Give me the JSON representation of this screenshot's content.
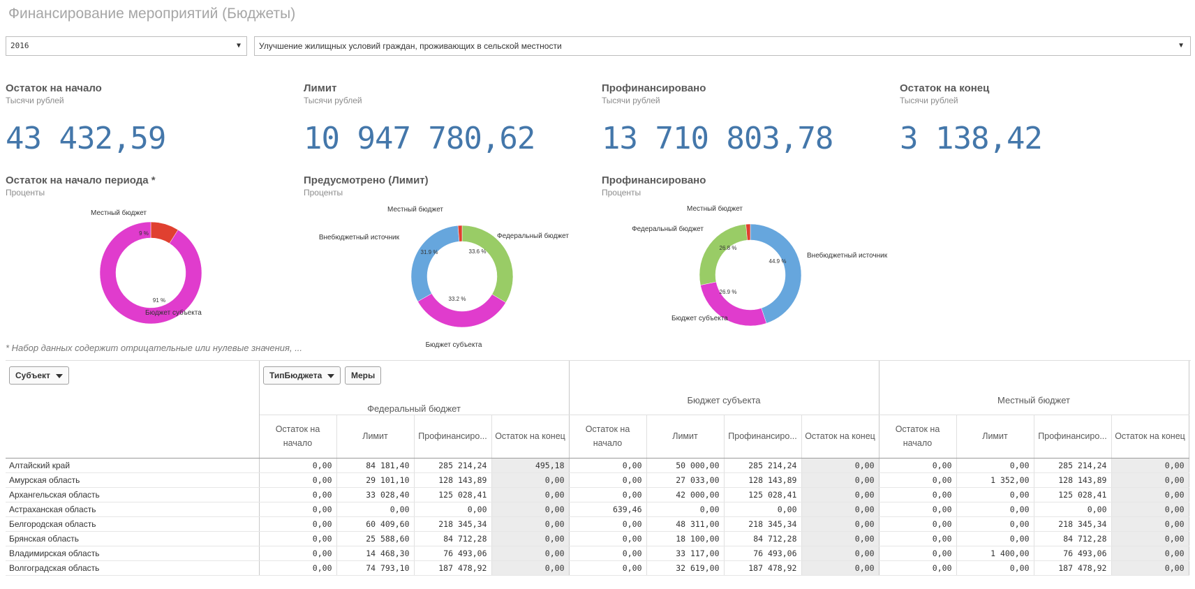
{
  "page": {
    "title": "Финансирование мероприятий (Бюджеты)"
  },
  "filters": {
    "year": "2016",
    "program": "Улучшение жилищных условий граждан, проживающих в сельской местности"
  },
  "kpis": [
    {
      "title": "Остаток на начало",
      "unit": "Тысячи рублей",
      "value": "43 432,59"
    },
    {
      "title": "Лимит",
      "unit": "Тысячи рублей",
      "value": "10 947 780,62"
    },
    {
      "title": "Профинансировано",
      "unit": "Тысячи рублей",
      "value": "13 710 803,78"
    },
    {
      "title": "Остаток на конец",
      "unit": "Тысячи рублей",
      "value": "3 138,42"
    }
  ],
  "chart_data": [
    {
      "type": "pie",
      "title": "Остаток на начало периода *",
      "subtitle": "Проценты",
      "slices": [
        {
          "label": "Местный бюджет",
          "pct_label": "9 %",
          "value": 9,
          "color": "#e04030"
        },
        {
          "label": "Бюджет субъекта",
          "pct_label": "91 %",
          "value": 91,
          "color": "#e03ccd"
        }
      ]
    },
    {
      "type": "pie",
      "title": "Предусмотрено (Лимит)",
      "subtitle": "Проценты",
      "slices": [
        {
          "label": "Федеральный бюджет",
          "pct_label": "33.6 %",
          "value": 33.6,
          "color": "#99cc66"
        },
        {
          "label": "Бюджет субъекта",
          "pct_label": "33.2 %",
          "value": 33.2,
          "color": "#e03ccd"
        },
        {
          "label": "Внебюджетный источник",
          "pct_label": "31.9 %",
          "value": 31.9,
          "color": "#66a6dd"
        },
        {
          "label": "Местный бюджет",
          "pct_label": "",
          "value": 1.3,
          "color": "#e04030"
        }
      ]
    },
    {
      "type": "pie",
      "title": "Профинансировано",
      "subtitle": "Проценты",
      "slices": [
        {
          "label": "Внебюджетный источник",
          "pct_label": "44.9 %",
          "value": 44.9,
          "color": "#66a6dd"
        },
        {
          "label": "Бюджет субъекта",
          "pct_label": "26.9 %",
          "value": 26.9,
          "color": "#e03ccd"
        },
        {
          "label": "Федеральный бюджет",
          "pct_label": "26.8 %",
          "value": 26.8,
          "color": "#99cc66"
        },
        {
          "label": "Местный бюджет",
          "pct_label": "",
          "value": 1.4,
          "color": "#e04030"
        }
      ]
    }
  ],
  "footnote": "* Набор данных содержит отрицательные или нулевые значения, ...",
  "pivot": {
    "dim_button": "Субъект",
    "col_button": "ТипБюджета",
    "measures_button": "Меры",
    "groups": [
      "Федеральный бюджет",
      "Бюджет субъекта",
      "Местный бюджет"
    ],
    "measures": [
      "Остаток на начало",
      "Лимит",
      "Профинансиро...",
      "Остаток на конец"
    ],
    "rows": [
      {
        "name": "Алтайский край",
        "values": [
          "0,00",
          "84 181,40",
          "285 214,24",
          "495,18",
          "0,00",
          "50 000,00",
          "285 214,24",
          "0,00",
          "0,00",
          "0,00",
          "285 214,24",
          "0,00"
        ]
      },
      {
        "name": "Амурская область",
        "values": [
          "0,00",
          "29 101,10",
          "128 143,89",
          "0,00",
          "0,00",
          "27 033,00",
          "128 143,89",
          "0,00",
          "0,00",
          "1 352,00",
          "128 143,89",
          "0,00"
        ]
      },
      {
        "name": "Архангельская область",
        "values": [
          "0,00",
          "33 028,40",
          "125 028,41",
          "0,00",
          "0,00",
          "42 000,00",
          "125 028,41",
          "0,00",
          "0,00",
          "0,00",
          "125 028,41",
          "0,00"
        ]
      },
      {
        "name": "Астраханская область",
        "values": [
          "0,00",
          "0,00",
          "0,00",
          "0,00",
          "639,46",
          "0,00",
          "0,00",
          "0,00",
          "0,00",
          "0,00",
          "0,00",
          "0,00"
        ]
      },
      {
        "name": "Белгородская область",
        "values": [
          "0,00",
          "60 409,60",
          "218 345,34",
          "0,00",
          "0,00",
          "48 311,00",
          "218 345,34",
          "0,00",
          "0,00",
          "0,00",
          "218 345,34",
          "0,00"
        ]
      },
      {
        "name": "Брянская область",
        "values": [
          "0,00",
          "25 588,60",
          "84 712,28",
          "0,00",
          "0,00",
          "18 100,00",
          "84 712,28",
          "0,00",
          "0,00",
          "0,00",
          "84 712,28",
          "0,00"
        ]
      },
      {
        "name": "Владимирская область",
        "values": [
          "0,00",
          "14 468,30",
          "76 493,06",
          "0,00",
          "0,00",
          "33 117,00",
          "76 493,06",
          "0,00",
          "0,00",
          "1 400,00",
          "76 493,06",
          "0,00"
        ]
      },
      {
        "name": "Волгоградская область",
        "values": [
          "0,00",
          "74 793,10",
          "187 478,92",
          "0,00",
          "0,00",
          "32 619,00",
          "187 478,92",
          "0,00",
          "0,00",
          "0,00",
          "187 478,92",
          "0,00"
        ]
      }
    ]
  }
}
